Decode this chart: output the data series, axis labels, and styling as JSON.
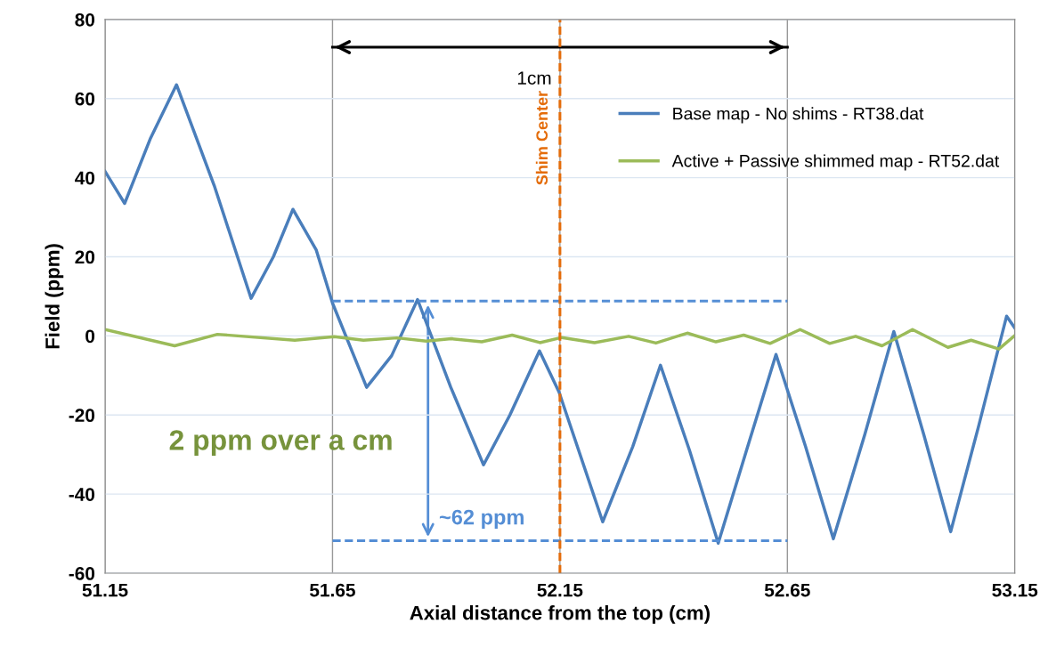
{
  "chart_data": {
    "type": "line",
    "xlabel": "Axial distance from the top (cm)",
    "ylabel": "Field (ppm)",
    "xlim": [
      51.15,
      53.15
    ],
    "xticks": [
      {
        "value": 51.15,
        "label": "51.15"
      },
      {
        "value": 51.65,
        "label": "51.65"
      },
      {
        "value": 52.15,
        "label": "52.15"
      },
      {
        "value": 52.65,
        "label": "52.65"
      },
      {
        "value": 53.15,
        "label": "53.15"
      }
    ],
    "ylim": [
      -60,
      80
    ],
    "yticks": [
      -60,
      -40,
      -20,
      0,
      20,
      40,
      60,
      80
    ],
    "grid": true,
    "legend": "top right",
    "series": [
      {
        "name": "Base map - No shims - RT38.dat",
        "color": "#4a7ebb",
        "x": [
          51.15,
          51.193,
          51.25,
          51.307,
          51.39,
          51.471,
          51.52,
          51.563,
          51.614,
          51.65,
          51.725,
          51.78,
          51.837,
          51.91,
          51.982,
          52.04,
          52.105,
          52.148,
          52.244,
          52.31,
          52.371,
          52.435,
          52.498,
          52.56,
          52.625,
          52.69,
          52.751,
          52.82,
          52.884,
          52.95,
          53.009,
          53.07,
          53.132,
          53.15
        ],
        "values": [
          41.6,
          33.5,
          50,
          63.5,
          38,
          9.5,
          20,
          32,
          21.8,
          8.3,
          -13,
          -5,
          9.2,
          -13,
          -32.6,
          -20,
          -3.8,
          -14.2,
          -47,
          -28,
          -7.4,
          -29,
          -52.4,
          -29,
          -4.7,
          -28,
          -51.3,
          -25,
          1.1,
          -25,
          -49.5,
          -23,
          5,
          2
        ]
      },
      {
        "name": "Active + Passive shimmed map - RT52.dat",
        "color": "#9bbb59",
        "x": [
          51.15,
          51.303,
          51.397,
          51.567,
          51.654,
          51.718,
          51.792,
          51.856,
          51.911,
          51.978,
          52.045,
          52.106,
          52.154,
          52.226,
          52.301,
          52.361,
          52.43,
          52.493,
          52.554,
          52.612,
          52.678,
          52.743,
          52.8,
          52.858,
          52.925,
          53.003,
          53.054,
          53.115,
          53.15
        ],
        "values": [
          1.6,
          -2.5,
          0.4,
          -1.1,
          -0.2,
          -1.1,
          -0.5,
          -1.3,
          -0.7,
          -1.5,
          0.2,
          -1.7,
          -0.4,
          -1.7,
          -0.1,
          -1.8,
          0.7,
          -1.5,
          0.2,
          -1.9,
          1.6,
          -1.9,
          -0.1,
          -2.5,
          1.6,
          -2.9,
          -1.1,
          -3.3,
          0.1
        ]
      },
      {
        "color": "#000000",
        "x": [
          51.65,
          52.65
        ],
        "values": [
          73,
          73
        ]
      },
      {
        "color": "#558ed5",
        "line_style": "dashed",
        "x": [
          51.65,
          52.65
        ],
        "values": [
          8.8,
          8.8
        ]
      },
      {
        "color": "#558ed5",
        "line_style": "dashed",
        "x": [
          51.65,
          52.65
        ],
        "values": [
          -51.8,
          -51.8
        ]
      }
    ],
    "ref_lines": [
      {
        "axis": "x",
        "value": 52.15,
        "label": "Shim Center",
        "color": "#e46c0a",
        "line_style": "dashed"
      }
    ],
    "annotations": [
      "1cm",
      "~62 ppm",
      "2 ppm over a cm"
    ]
  }
}
